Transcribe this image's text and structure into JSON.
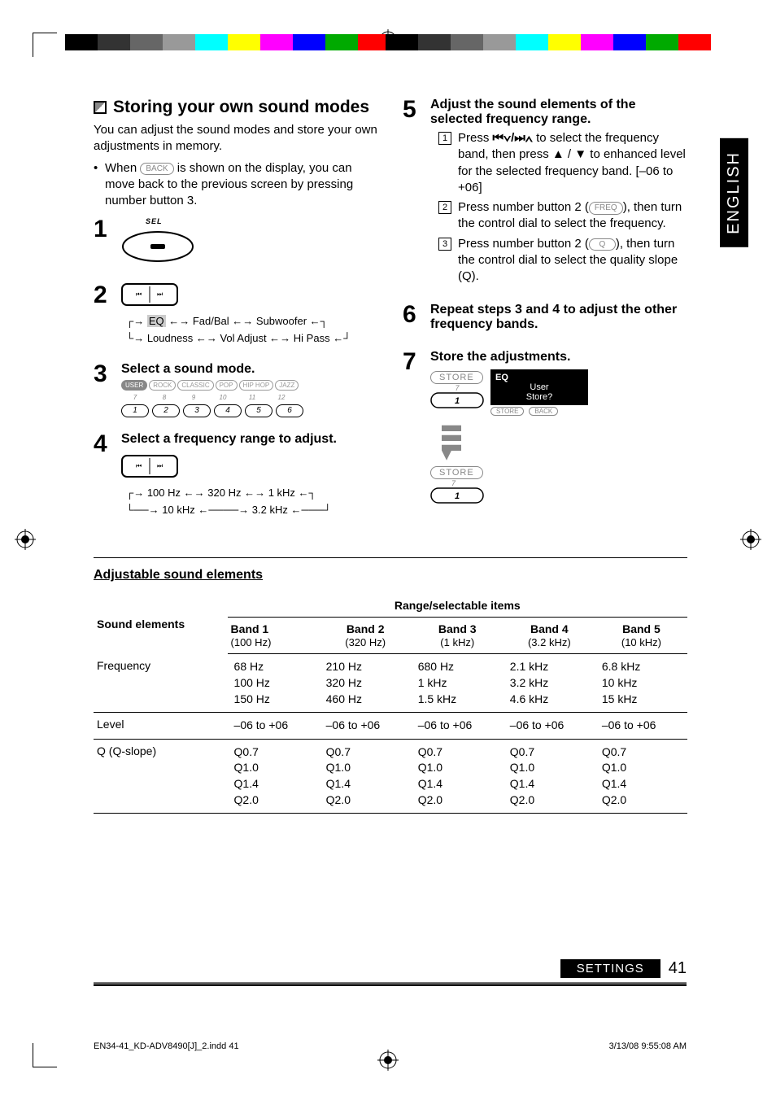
{
  "sideTab": "ENGLISH",
  "colorBar": [
    "#000",
    "#333",
    "#666",
    "#999",
    "#0ff",
    "#ff0",
    "#f0f",
    "#00f",
    "#0a0",
    "#f00"
  ],
  "heading": "Storing your own sound modes",
  "intro": "You can adjust the sound modes and store your own adjustments in memory.",
  "backNote1": "When ",
  "backPill": "BACK",
  "backNote2": " is shown on the display, you can move back to the previous screen by pressing number button 3.",
  "selLabel": "SEL",
  "flow1a": "EQ",
  "flow1b": "Fad/Bal",
  "flow1c": "Subwoofer",
  "flow2a": "Loudness",
  "flow2b": "Vol Adjust",
  "flow2c": "Hi Pass",
  "step3": "Select a sound mode.",
  "modes": [
    "USER",
    "ROCK",
    "CLASSIC",
    "POP",
    "HIP HOP",
    "JAZZ"
  ],
  "modeNums": [
    "7",
    "8",
    "9",
    "10",
    "11",
    "12"
  ],
  "numBtns": [
    "1",
    "2",
    "3",
    "4",
    "5",
    "6"
  ],
  "step4": "Select a frequency range to adjust.",
  "freqFlow1a": "100 Hz",
  "freqFlow1b": "320 Hz",
  "freqFlow1c": "1 kHz",
  "freqFlow2a": "10 kHz",
  "freqFlow2b": "3.2 kHz",
  "step5": "Adjust the sound elements of the selected frequency range.",
  "sub1a": "Press ",
  "sub1b": " to select the frequency band, then press ▲ / ▼ to enhanced level for the selected frequency band. [–06 to +06]",
  "sub2a": "Press number button 2 (",
  "sub2pill": "FREQ",
  "sub2b": "), then turn the control dial to select the frequency.",
  "sub3a": "Press number button 2 (",
  "sub3pill": "Q",
  "sub3b": "), then turn the control dial to select the quality slope (Q).",
  "step6": "Repeat steps 3 and 4 to adjust the other frequency bands.",
  "step7": "Store the adjustments.",
  "storePill": "STORE",
  "storeNum": "7",
  "storeBtn": "1",
  "lcdTitle": "EQ",
  "lcdL1": "User",
  "lcdL2": "Store?",
  "lcdBtnL": "STORE",
  "lcdBtnR": "BACK",
  "tableTitle": "Adjustable sound elements",
  "colSound": "Sound elements",
  "colRange": "Range/selectable items",
  "bands": [
    {
      "h1": "Band 1",
      "h2": "(100 Hz)"
    },
    {
      "h1": "Band 2",
      "h2": "(320 Hz)"
    },
    {
      "h1": "Band 3",
      "h2": "(1 kHz)"
    },
    {
      "h1": "Band 4",
      "h2": "(3.2 kHz)"
    },
    {
      "h1": "Band 5",
      "h2": "(10 kHz)"
    }
  ],
  "rows": [
    {
      "label": "Frequency",
      "vals": [
        [
          "68 Hz",
          "100 Hz",
          "150 Hz"
        ],
        [
          "210 Hz",
          "320 Hz",
          "460 Hz"
        ],
        [
          "680 Hz",
          "1 kHz",
          "1.5 kHz"
        ],
        [
          "2.1 kHz",
          "3.2 kHz",
          "4.6 kHz"
        ],
        [
          "6.8 kHz",
          "10 kHz",
          "15 kHz"
        ]
      ]
    },
    {
      "label": "Level",
      "vals": [
        [
          "–06 to +06"
        ],
        [
          "–06 to +06"
        ],
        [
          "–06 to +06"
        ],
        [
          "–06 to +06"
        ],
        [
          "–06 to +06"
        ]
      ]
    },
    {
      "label": "Q (Q-slope)",
      "vals": [
        [
          "Q0.7",
          "Q1.0",
          "Q1.4",
          "Q2.0"
        ],
        [
          "Q0.7",
          "Q1.0",
          "Q1.4",
          "Q2.0"
        ],
        [
          "Q0.7",
          "Q1.0",
          "Q1.4",
          "Q2.0"
        ],
        [
          "Q0.7",
          "Q1.0",
          "Q1.4",
          "Q2.0"
        ],
        [
          "Q0.7",
          "Q1.0",
          "Q1.4",
          "Q2.0"
        ]
      ]
    }
  ],
  "footerLabel": "SETTINGS",
  "pageNum": "41",
  "printLeft": "EN34-41_KD-ADV8490[J]_2.indd   41",
  "printRight": "3/13/08   9:55:08 AM",
  "navGlyph": "⏮⏭"
}
